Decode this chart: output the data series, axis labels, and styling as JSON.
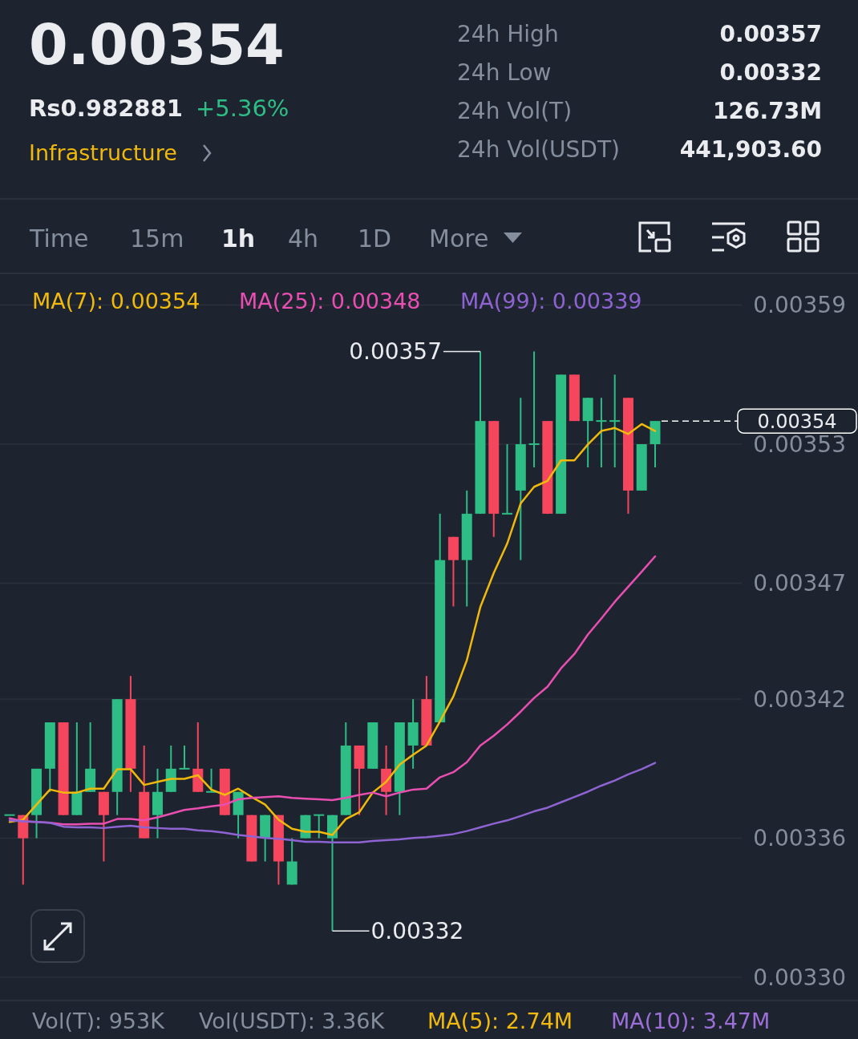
{
  "chart_data": {
    "type": "candlestick",
    "title": "0.00354",
    "categories": [
      null,
      null,
      null,
      null,
      null,
      null,
      null,
      null,
      null,
      null,
      null,
      null,
      null,
      null,
      null,
      null,
      null,
      null,
      null,
      null,
      null,
      null,
      null,
      null,
      null,
      null,
      null,
      null,
      null,
      null,
      null,
      null,
      null,
      null,
      null,
      null,
      null,
      null,
      null,
      null,
      null,
      null,
      null,
      null,
      null,
      null,
      null,
      null,
      null
    ],
    "ohlc": [
      [
        0.00337,
        0.00337,
        0.00337,
        0.00337
      ],
      [
        0.00337,
        0.00337,
        0.00334,
        0.00336
      ],
      [
        0.00337,
        0.00339,
        0.00336,
        0.00339
      ],
      [
        0.00339,
        0.00341,
        0.00338,
        0.00341
      ],
      [
        0.00341,
        0.00341,
        0.00337,
        0.00337
      ],
      [
        0.00337,
        0.00341,
        0.00337,
        0.00338
      ],
      [
        0.00338,
        0.00341,
        0.00338,
        0.00339
      ],
      [
        0.00338,
        0.00338,
        0.00335,
        0.00337
      ],
      [
        0.00338,
        0.00342,
        0.00337,
        0.00342
      ],
      [
        0.00342,
        0.00343,
        0.00338,
        0.00339
      ],
      [
        0.00338,
        0.0034,
        0.00336,
        0.00336
      ],
      [
        0.00337,
        0.00339,
        0.00336,
        0.00338
      ],
      [
        0.00338,
        0.0034,
        0.00338,
        0.00339
      ],
      [
        0.00339,
        0.0034,
        0.00339,
        0.00339
      ],
      [
        0.00339,
        0.00341,
        0.00338,
        0.00338
      ],
      [
        0.00338,
        0.00339,
        0.00338,
        0.00338
      ],
      [
        0.00339,
        0.00339,
        0.00337,
        0.00337
      ],
      [
        0.00337,
        0.00338,
        0.00336,
        0.00338
      ],
      [
        0.00337,
        0.00337,
        0.00335,
        0.00335
      ],
      [
        0.00336,
        0.00337,
        0.00335,
        0.00337
      ],
      [
        0.00337,
        0.00337,
        0.00334,
        0.00335
      ],
      [
        0.00334,
        0.00336,
        0.00334,
        0.00335
      ],
      [
        0.00336,
        0.00337,
        0.00336,
        0.00337
      ],
      [
        0.00337,
        0.00337,
        0.00336,
        0.00337
      ],
      [
        0.00336,
        0.00337,
        0.00332,
        0.00337
      ],
      [
        0.00337,
        0.00341,
        0.00337,
        0.0034
      ],
      [
        0.0034,
        0.0034,
        0.00337,
        0.00339
      ],
      [
        0.00339,
        0.00341,
        0.00339,
        0.00341
      ],
      [
        0.00339,
        0.0034,
        0.00337,
        0.00338
      ],
      [
        0.00338,
        0.00341,
        0.00337,
        0.00341
      ],
      [
        0.0034,
        0.00342,
        0.00339,
        0.00341
      ],
      [
        0.00342,
        0.00343,
        0.0034,
        0.0034
      ],
      [
        0.00341,
        0.0035,
        0.00341,
        0.00348
      ],
      [
        0.00349,
        0.00349,
        0.00346,
        0.00348
      ],
      [
        0.00348,
        0.00351,
        0.00346,
        0.0035
      ],
      [
        0.0035,
        0.00357,
        0.0035,
        0.00354
      ],
      [
        0.00354,
        0.00354,
        0.00349,
        0.0035
      ],
      [
        0.0035,
        0.00353,
        0.0035,
        0.0035
      ],
      [
        0.00351,
        0.00355,
        0.00348,
        0.00353
      ],
      [
        0.00353,
        0.00357,
        0.00352,
        0.00353
      ],
      [
        0.00354,
        0.00354,
        0.0035,
        0.0035
      ],
      [
        0.0035,
        0.00356,
        0.0035,
        0.00356
      ],
      [
        0.00356,
        0.00356,
        0.00354,
        0.00354
      ],
      [
        0.00354,
        0.00355,
        0.00352,
        0.00355
      ],
      [
        0.00354,
        0.00355,
        0.00352,
        0.00354
      ],
      [
        0.00354,
        0.00356,
        0.00352,
        0.00354
      ],
      [
        0.00355,
        0.00355,
        0.0035,
        0.00351
      ],
      [
        0.00351,
        0.00353,
        0.00351,
        0.00353
      ],
      [
        0.00353,
        0.00354,
        0.00352,
        0.00354
      ]
    ],
    "colors": [
      "#2ebd85",
      "#f6465d",
      "#2ebd85",
      "#2ebd85",
      "#f6465d",
      "#2ebd85",
      "#2ebd85",
      "#f6465d",
      "#2ebd85",
      "#f6465d",
      "#f6465d",
      "#2ebd85",
      "#2ebd85",
      "#2ebd85",
      "#f6465d",
      "#2ebd85",
      "#f6465d",
      "#2ebd85",
      "#f6465d",
      "#2ebd85",
      "#f6465d",
      "#2ebd85",
      "#2ebd85",
      "#2ebd85",
      "#2ebd85",
      "#2ebd85",
      "#f6465d",
      "#2ebd85",
      "#f6465d",
      "#2ebd85",
      "#2ebd85",
      "#f6465d",
      "#2ebd85",
      "#f6465d",
      "#2ebd85",
      "#2ebd85",
      "#f6465d",
      "#2ebd85",
      "#2ebd85",
      "#2ebd85",
      "#f6465d",
      "#2ebd85",
      "#f6465d",
      "#2ebd85",
      "#2ebd85",
      "#2ebd85",
      "#f6465d",
      "#2ebd85",
      "#2ebd85"
    ],
    "series": [
      {
        "type": "line",
        "name": "MA(7): 0.00354",
        "color": "#f0b90b",
        "values": [
          0.003367,
          0.003368,
          0.0033745,
          0.003381,
          0.0033797,
          0.0033797,
          0.0033814,
          0.0033814,
          0.0033898,
          0.0033898,
          0.003383,
          0.0033843,
          0.0033856,
          0.0033856,
          0.0033872,
          0.003381,
          0.0033787,
          0.0033814,
          0.0033778,
          0.0033745,
          0.003368,
          0.0033641,
          0.0033628,
          0.0033628,
          0.0033614,
          0.0033683,
          0.0033712,
          0.0033797,
          0.0033843,
          0.0033918,
          0.003396,
          0.0034,
          0.0034104,
          0.0034212,
          0.0034368,
          0.0034597,
          0.0034744,
          0.0034871,
          0.0035044,
          0.0035116,
          0.0035142,
          0.003523,
          0.003523,
          0.0035299,
          0.0035357,
          0.003537,
          0.0035344,
          0.0035387,
          0.0035357
        ]
      },
      {
        "type": "line",
        "name": "MA(25): 0.00348",
        "color": "#e84fb0",
        "values": [
          0.0033686,
          0.0033673,
          0.003367,
          0.0033667,
          0.003366,
          0.003366,
          0.0033663,
          0.0033663,
          0.0033683,
          0.0033683,
          0.0033677,
          0.003369,
          0.0033706,
          0.0033722,
          0.0033729,
          0.0033738,
          0.0033745,
          0.0033768,
          0.0033774,
          0.0033778,
          0.0033781,
          0.0033774,
          0.0033771,
          0.0033768,
          0.0033765,
          0.0033774,
          0.0033787,
          0.0033797,
          0.0033781,
          0.0033797,
          0.003381,
          0.0033814,
          0.0033863,
          0.0033885,
          0.0033928,
          0.0034,
          0.0034042,
          0.0034091,
          0.0034146,
          0.0034205,
          0.0034254,
          0.0034333,
          0.0034395,
          0.0034479,
          0.0034548,
          0.003462,
          0.0034685,
          0.003475,
          0.0034816
        ]
      },
      {
        "type": "line",
        "name": "MA(99): 0.00339",
        "color": "#8e63d2",
        "values": [
          0.0033677,
          0.0033673,
          0.003367,
          0.0033667,
          0.003365,
          0.0033647,
          0.0033647,
          0.0033644,
          0.003365,
          0.0033654,
          0.0033647,
          0.0033644,
          0.0033641,
          0.0033641,
          0.0033634,
          0.0033631,
          0.0033624,
          0.0033614,
          0.0033608,
          0.0033601,
          0.0033598,
          0.0033592,
          0.0033585,
          0.0033585,
          0.0033582,
          0.0033582,
          0.0033582,
          0.0033588,
          0.0033592,
          0.0033595,
          0.0033601,
          0.0033605,
          0.0033611,
          0.0033618,
          0.0033631,
          0.0033647,
          0.0033663,
          0.0033677,
          0.0033696,
          0.0033716,
          0.0033732,
          0.0033755,
          0.0033778,
          0.0033801,
          0.0033827,
          0.0033849,
          0.0033876,
          0.0033898,
          0.0033925
        ]
      }
    ],
    "ylim": [
      0.00329,
      0.0036023
    ],
    "yticks": [
      0.00359,
      0.00353,
      0.00347,
      0.00342,
      0.00336,
      {
        "value": 0.0033,
        "label": "0.00330"
      }
    ],
    "grid": "y",
    "legend": "top",
    "tick_labels": "y",
    "marker": "none",
    "line_style": "solid",
    "ref_lines": [
      {
        "axis": "y",
        "value": 0.00354,
        "label": "0.00354",
        "line_style": "dashed",
        "color": "#ffffff"
      }
    ],
    "annotations": [
      "Rs0.982881",
      "+5.36%",
      "Infrastructure",
      "24h High",
      "0.00357",
      "24h Low",
      "0.00332",
      "24h Vol(T)",
      "126.73M",
      "24h Vol(USDT)",
      "441,903.60",
      "Time",
      "15m",
      "1h",
      "4h",
      "1D",
      "More",
      "Vol(T): 953K",
      "Vol(USDT): 3.36K",
      "MA(5): 2.74M",
      "MA(10): 3.47M",
      "0.00357",
      "0.00332"
    ]
  }
}
